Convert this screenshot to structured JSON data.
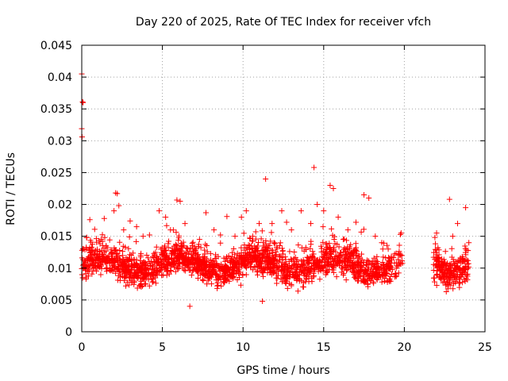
{
  "chart_data": {
    "type": "scatter",
    "title": "Day 220 of 2025, Rate Of TEC Index for receiver vfch",
    "xlabel": "GPS time / hours",
    "ylabel": "ROTI / TECUs",
    "xlim": [
      0,
      25
    ],
    "ylim": [
      0,
      0.045
    ],
    "x_ticks": [
      "0",
      "5",
      "10",
      "15",
      "20",
      "25"
    ],
    "y_ticks": [
      "0",
      "0.005",
      "0.01",
      "0.015",
      "0.02",
      "0.025",
      "0.03",
      "0.035",
      "0.04",
      "0.045"
    ],
    "grid": true,
    "marker": "+",
    "color": "#ff0000",
    "data_gap_hours": [
      19.9,
      21.8
    ],
    "series": [
      {
        "points": [
          [
            0.0,
            0.0405
          ],
          [
            0.05,
            0.0361
          ],
          [
            0.08,
            0.036
          ],
          [
            0.0,
            0.0319
          ],
          [
            0.02,
            0.0306
          ],
          [
            0.3,
            0.0148
          ],
          [
            0.5,
            0.0176
          ],
          [
            0.8,
            0.0161
          ],
          [
            1.2,
            0.0145
          ],
          [
            1.5,
            0.0135
          ],
          [
            2.0,
            0.019
          ],
          [
            2.1,
            0.0218
          ],
          [
            2.2,
            0.0217
          ],
          [
            2.3,
            0.0198
          ],
          [
            2.6,
            0.016
          ],
          [
            3.0,
            0.0174
          ],
          [
            3.4,
            0.0165
          ],
          [
            3.8,
            0.015
          ],
          [
            4.2,
            0.0152
          ],
          [
            4.8,
            0.019
          ],
          [
            5.2,
            0.018
          ],
          [
            5.5,
            0.016
          ],
          [
            5.9,
            0.0207
          ],
          [
            6.1,
            0.0205
          ],
          [
            6.4,
            0.017
          ],
          [
            6.7,
            0.004
          ],
          [
            7.3,
            0.0145
          ],
          [
            7.7,
            0.0187
          ],
          [
            8.2,
            0.016
          ],
          [
            8.6,
            0.0152
          ],
          [
            9.0,
            0.0181
          ],
          [
            9.5,
            0.015
          ],
          [
            9.9,
            0.018
          ],
          [
            10.2,
            0.019
          ],
          [
            10.6,
            0.015
          ],
          [
            11.0,
            0.017
          ],
          [
            11.2,
            0.0048
          ],
          [
            11.4,
            0.024
          ],
          [
            11.8,
            0.017
          ],
          [
            12.4,
            0.019
          ],
          [
            12.7,
            0.0172
          ],
          [
            13.0,
            0.016
          ],
          [
            13.6,
            0.019
          ],
          [
            14.2,
            0.017
          ],
          [
            14.4,
            0.0258
          ],
          [
            14.6,
            0.02
          ],
          [
            15.0,
            0.019
          ],
          [
            15.4,
            0.023
          ],
          [
            15.6,
            0.0225
          ],
          [
            15.9,
            0.018
          ],
          [
            16.5,
            0.016
          ],
          [
            17.0,
            0.0172
          ],
          [
            17.5,
            0.0215
          ],
          [
            17.8,
            0.021
          ],
          [
            18.2,
            0.015
          ],
          [
            18.6,
            0.014
          ],
          [
            19.0,
            0.013
          ],
          [
            19.5,
            0.01
          ],
          [
            19.8,
            0.0155
          ],
          [
            22.0,
            0.0155
          ],
          [
            22.3,
            0.011
          ],
          [
            22.6,
            0.0063
          ],
          [
            22.8,
            0.0208
          ],
          [
            23.0,
            0.015
          ],
          [
            23.3,
            0.017
          ],
          [
            23.6,
            0.011
          ],
          [
            23.8,
            0.0195
          ],
          [
            24.0,
            0.014
          ]
        ]
      }
    ]
  }
}
